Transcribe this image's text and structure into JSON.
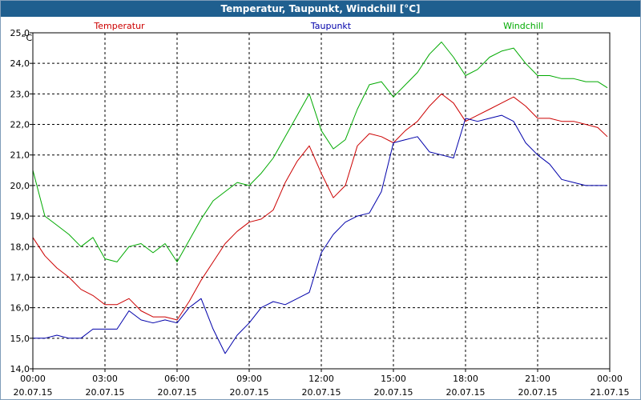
{
  "window": {
    "title": "Temperatur, Taupunkt, Windchill [°C]"
  },
  "colors": {
    "temperatur": "#cc0000",
    "taupunkt": "#0000aa",
    "windchill": "#00aa00",
    "grid": "#000000",
    "titlebar": "#1f5f8f"
  },
  "chart_data": {
    "type": "line",
    "ylabel": "°C",
    "ylim": [
      14.0,
      25.0
    ],
    "yticks": [
      "14,0",
      "15,0",
      "16,0",
      "17,0",
      "18,0",
      "19,0",
      "20,0",
      "21,0",
      "22,0",
      "23,0",
      "24,0",
      "25,0"
    ],
    "xlim": [
      0,
      24
    ],
    "xticks": [
      {
        "time": "00:00",
        "date": "20.07.15"
      },
      {
        "time": "03:00",
        "date": "20.07.15"
      },
      {
        "time": "06:00",
        "date": "20.07.15"
      },
      {
        "time": "09:00",
        "date": "20.07.15"
      },
      {
        "time": "12:00",
        "date": "20.07.15"
      },
      {
        "time": "15:00",
        "date": "20.07.15"
      },
      {
        "time": "18:00",
        "date": "20.07.15"
      },
      {
        "time": "21:00",
        "date": "20.07.15"
      },
      {
        "time": "00:00",
        "date": "21.07.15"
      }
    ],
    "grid": true,
    "series": [
      {
        "name": "Temperatur",
        "x": [
          0,
          0.5,
          1,
          1.5,
          2,
          2.5,
          3,
          3.5,
          4,
          4.5,
          5,
          5.5,
          6,
          6.5,
          7,
          7.5,
          8,
          8.5,
          9,
          9.5,
          10,
          10.5,
          11,
          11.5,
          12,
          12.5,
          13,
          13.5,
          14,
          14.5,
          15,
          15.5,
          16,
          16.5,
          17,
          17.5,
          18,
          18.5,
          19,
          19.5,
          20,
          20.5,
          21,
          21.5,
          22,
          22.5,
          23,
          23.5,
          23.9
        ],
        "values": [
          18.3,
          17.7,
          17.3,
          17.0,
          16.6,
          16.4,
          16.1,
          16.1,
          16.3,
          15.9,
          15.7,
          15.7,
          15.6,
          16.2,
          16.9,
          17.5,
          18.1,
          18.5,
          18.8,
          18.9,
          19.2,
          20.1,
          20.8,
          21.3,
          20.4,
          19.6,
          20.0,
          21.3,
          21.7,
          21.6,
          21.4,
          21.8,
          22.1,
          22.6,
          23.0,
          22.7,
          22.1,
          22.3,
          22.5,
          22.7,
          22.9,
          22.6,
          22.2,
          22.2,
          22.1,
          22.1,
          22.0,
          21.9,
          21.6
        ]
      },
      {
        "name": "Taupunkt",
        "x": [
          0,
          0.5,
          1,
          1.5,
          2,
          2.5,
          3,
          3.5,
          4,
          4.5,
          5,
          5.5,
          6,
          6.5,
          7,
          7.5,
          8,
          8.5,
          9,
          9.5,
          10,
          10.5,
          11,
          11.5,
          12,
          12.5,
          13,
          13.5,
          14,
          14.5,
          15,
          15.5,
          16,
          16.5,
          17,
          17.5,
          18,
          18.5,
          19,
          19.5,
          20,
          20.5,
          21,
          21.5,
          22,
          22.5,
          23,
          23.5,
          23.9
        ],
        "values": [
          15.0,
          15.0,
          15.1,
          15.0,
          15.0,
          15.3,
          15.3,
          15.3,
          15.9,
          15.6,
          15.5,
          15.6,
          15.5,
          16.0,
          16.3,
          15.3,
          14.5,
          15.1,
          15.5,
          16.0,
          16.2,
          16.1,
          16.3,
          16.5,
          17.8,
          18.4,
          18.8,
          19.0,
          19.1,
          19.8,
          21.4,
          21.5,
          21.6,
          21.1,
          21.0,
          20.9,
          22.2,
          22.1,
          22.2,
          22.3,
          22.1,
          21.4,
          21.0,
          20.7,
          20.2,
          20.1,
          20.0,
          20.0,
          20.0
        ]
      },
      {
        "name": "Windchill",
        "x": [
          0,
          0.5,
          1,
          1.5,
          2,
          2.5,
          3,
          3.5,
          4,
          4.5,
          5,
          5.5,
          6,
          6.5,
          7,
          7.5,
          8,
          8.5,
          9,
          9.5,
          10,
          10.5,
          11,
          11.5,
          12,
          12.5,
          13,
          13.5,
          14,
          14.5,
          15,
          15.5,
          16,
          16.5,
          17,
          17.5,
          18,
          18.5,
          19,
          19.5,
          20,
          20.5,
          21,
          21.5,
          22,
          22.5,
          23,
          23.5,
          23.9
        ],
        "values": [
          20.5,
          19.0,
          18.7,
          18.4,
          18.0,
          18.3,
          17.6,
          17.5,
          18.0,
          18.1,
          17.8,
          18.1,
          17.5,
          18.2,
          18.9,
          19.5,
          19.8,
          20.1,
          20.0,
          20.4,
          20.9,
          21.6,
          22.3,
          23.0,
          21.8,
          21.2,
          21.5,
          22.5,
          23.3,
          23.4,
          22.9,
          23.3,
          23.7,
          24.3,
          24.7,
          24.2,
          23.6,
          23.8,
          24.2,
          24.4,
          24.5,
          24.0,
          23.6,
          23.6,
          23.5,
          23.5,
          23.4,
          23.4,
          23.2
        ]
      }
    ]
  }
}
